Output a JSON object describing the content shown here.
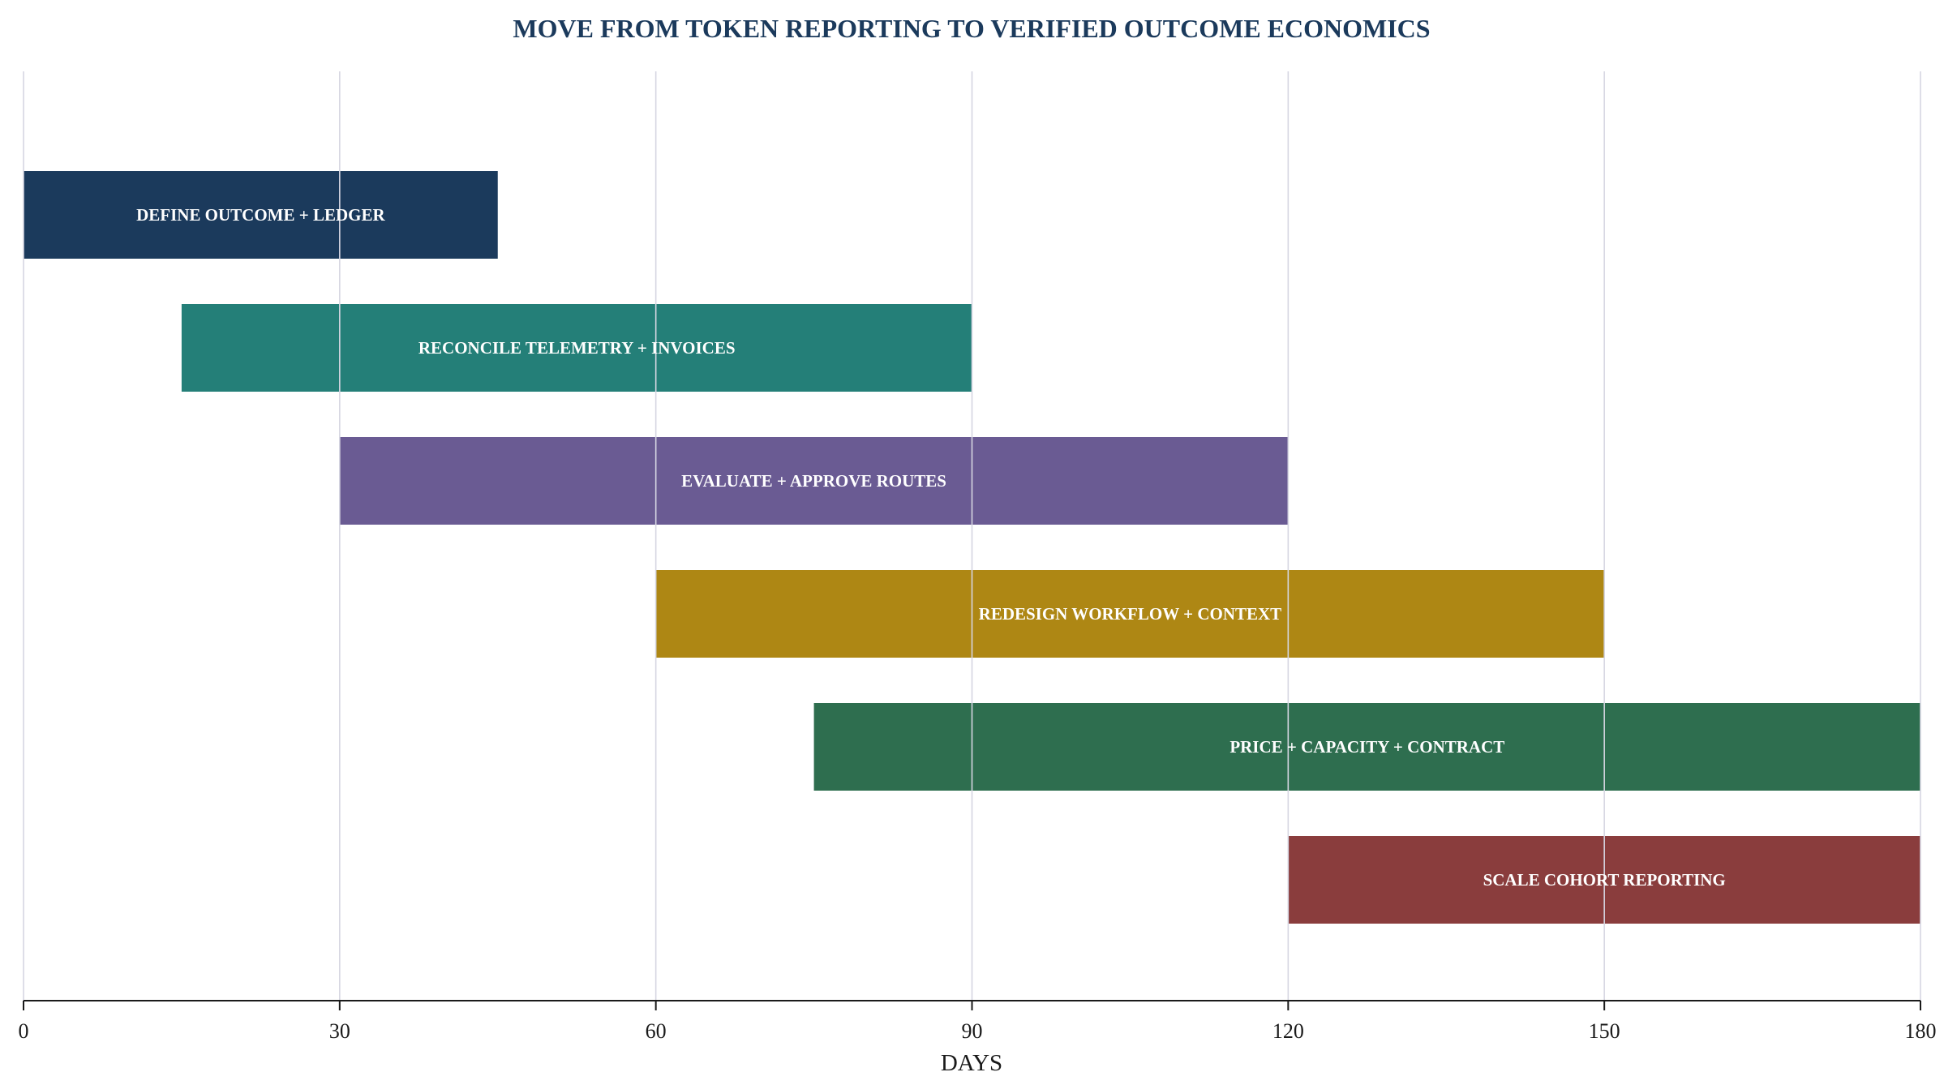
{
  "chart_data": {
    "type": "gantt",
    "title": "MOVE FROM TOKEN REPORTING TO VERIFIED OUTCOME ECONOMICS",
    "xlabel": "DAYS",
    "ylabel": "",
    "xlim": [
      0,
      180
    ],
    "xticks": [
      0,
      30,
      60,
      90,
      120,
      150,
      180
    ],
    "grid": true,
    "tasks": [
      {
        "label": "DEFINE OUTCOME + LEDGER",
        "start": 0,
        "end": 45,
        "color": "#1b3a5c"
      },
      {
        "label": "RECONCILE TELEMETRY + INVOICES",
        "start": 15,
        "end": 90,
        "color": "#247f78"
      },
      {
        "label": "EVALUATE + APPROVE ROUTES",
        "start": 30,
        "end": 120,
        "color": "#6a5b93"
      },
      {
        "label": "REDESIGN WORKFLOW + CONTEXT",
        "start": 60,
        "end": 150,
        "color": "#ae8714"
      },
      {
        "label": "PRICE + CAPACITY + CONTRACT",
        "start": 75,
        "end": 180,
        "color": "#2e6e4f"
      },
      {
        "label": "SCALE COHORT REPORTING",
        "start": 120,
        "end": 180,
        "color": "#8a3d3d"
      }
    ]
  }
}
